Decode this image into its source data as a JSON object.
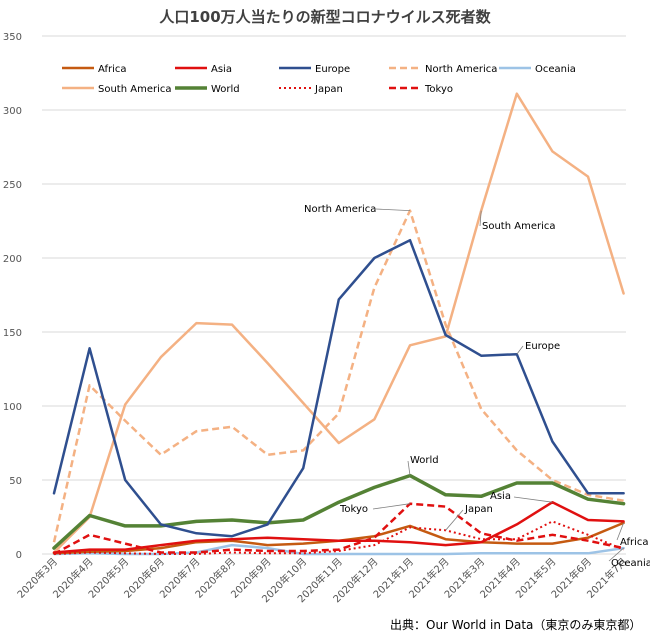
{
  "chart_data": {
    "type": "line",
    "title": "人口100万人当たりの新型コロナウイルス死者数",
    "source": "出典：Our World in Data（東京のみ東京都）",
    "categories": [
      "2020年3月",
      "2020年4月",
      "2020年5月",
      "2020年6月",
      "2020年7月",
      "2020年8月",
      "2020年9月",
      "2020年10月",
      "2020年11月",
      "2020年12月",
      "2021年1月",
      "2021年2月",
      "2021年3月",
      "2021年4月",
      "2021年5月",
      "2021年6月",
      "2021年7月"
    ],
    "ylim": [
      0,
      350
    ],
    "yticks": [
      0,
      50,
      100,
      150,
      200,
      250,
      300,
      350
    ],
    "grid": true,
    "legend_position": "top",
    "series": [
      {
        "name": "Africa",
        "color": "#c55a11",
        "dash": "solid",
        "width": 2.5,
        "values": [
          0.5,
          1.5,
          2,
          4,
          8,
          9,
          6,
          7,
          9,
          12,
          19,
          10,
          8,
          7,
          7,
          11,
          21
        ]
      },
      {
        "name": "Asia",
        "color": "#e01010",
        "dash": "solid",
        "width": 2.5,
        "values": [
          1,
          3,
          3,
          6,
          9,
          10,
          11,
          10,
          9,
          9,
          8,
          6,
          8,
          20,
          35,
          23,
          22
        ]
      },
      {
        "name": "Europe",
        "color": "#2f4f8f",
        "dash": "solid",
        "width": 2.5,
        "values": [
          41,
          139,
          50,
          20,
          14,
          12,
          20,
          58,
          172,
          200,
          212,
          148,
          134,
          135,
          76,
          41,
          41
        ]
      },
      {
        "name": "North America",
        "color": "#f4b183",
        "dash": "dashed",
        "width": 2.5,
        "values": [
          8,
          114,
          90,
          67,
          83,
          86,
          67,
          70,
          95,
          180,
          232,
          155,
          98,
          70,
          50,
          40,
          36
        ]
      },
      {
        "name": "Oceania",
        "color": "#9dc3e6",
        "dash": "solid",
        "width": 2.5,
        "values": [
          0,
          0.5,
          0,
          0,
          1,
          6,
          4,
          0,
          0,
          0,
          0,
          0,
          0.5,
          0.5,
          0.5,
          0.5,
          4
        ]
      },
      {
        "name": "South America",
        "color": "#f4b183",
        "dash": "solid",
        "width": 2.5,
        "values": [
          1,
          25,
          101,
          133,
          156,
          155,
          129,
          102,
          75,
          91,
          141,
          147,
          232,
          311,
          272,
          255,
          176
        ]
      },
      {
        "name": "World",
        "color": "#548235",
        "dash": "solid",
        "width": 3.5,
        "values": [
          4,
          26,
          19,
          19,
          22,
          23,
          21,
          23,
          35,
          45,
          53,
          40,
          39,
          48,
          48,
          37,
          34
        ]
      },
      {
        "name": "Japan",
        "color": "#e01010",
        "dash": "dotted",
        "width": 2,
        "values": [
          0,
          1,
          0.5,
          0,
          0,
          1,
          0.5,
          0.5,
          2,
          6,
          18,
          16,
          10,
          10,
          22,
          13,
          3
        ]
      },
      {
        "name": "Tokyo",
        "color": "#e01010",
        "dash": "dashed",
        "width": 2.5,
        "values": [
          0,
          13,
          7,
          1,
          1,
          3,
          2,
          2,
          3,
          11,
          34,
          32,
          14,
          9,
          13,
          9,
          4
        ]
      }
    ],
    "annotations": [
      {
        "text": "North America",
        "series": "North America",
        "point": 10
      },
      {
        "text": "South America",
        "series": "South America",
        "point": 12
      },
      {
        "text": "Europe",
        "series": "Europe",
        "point": 13
      },
      {
        "text": "World",
        "series": "World",
        "point": 10
      },
      {
        "text": "Tokyo",
        "series": "Tokyo",
        "point": 10
      },
      {
        "text": "Japan",
        "series": "Japan",
        "point": 11
      },
      {
        "text": "Asia",
        "series": "Asia",
        "point": 14
      },
      {
        "text": "Africa",
        "series": "Africa",
        "point": 16
      },
      {
        "text": "Oceania",
        "series": "Oceania",
        "point": 16
      }
    ]
  }
}
